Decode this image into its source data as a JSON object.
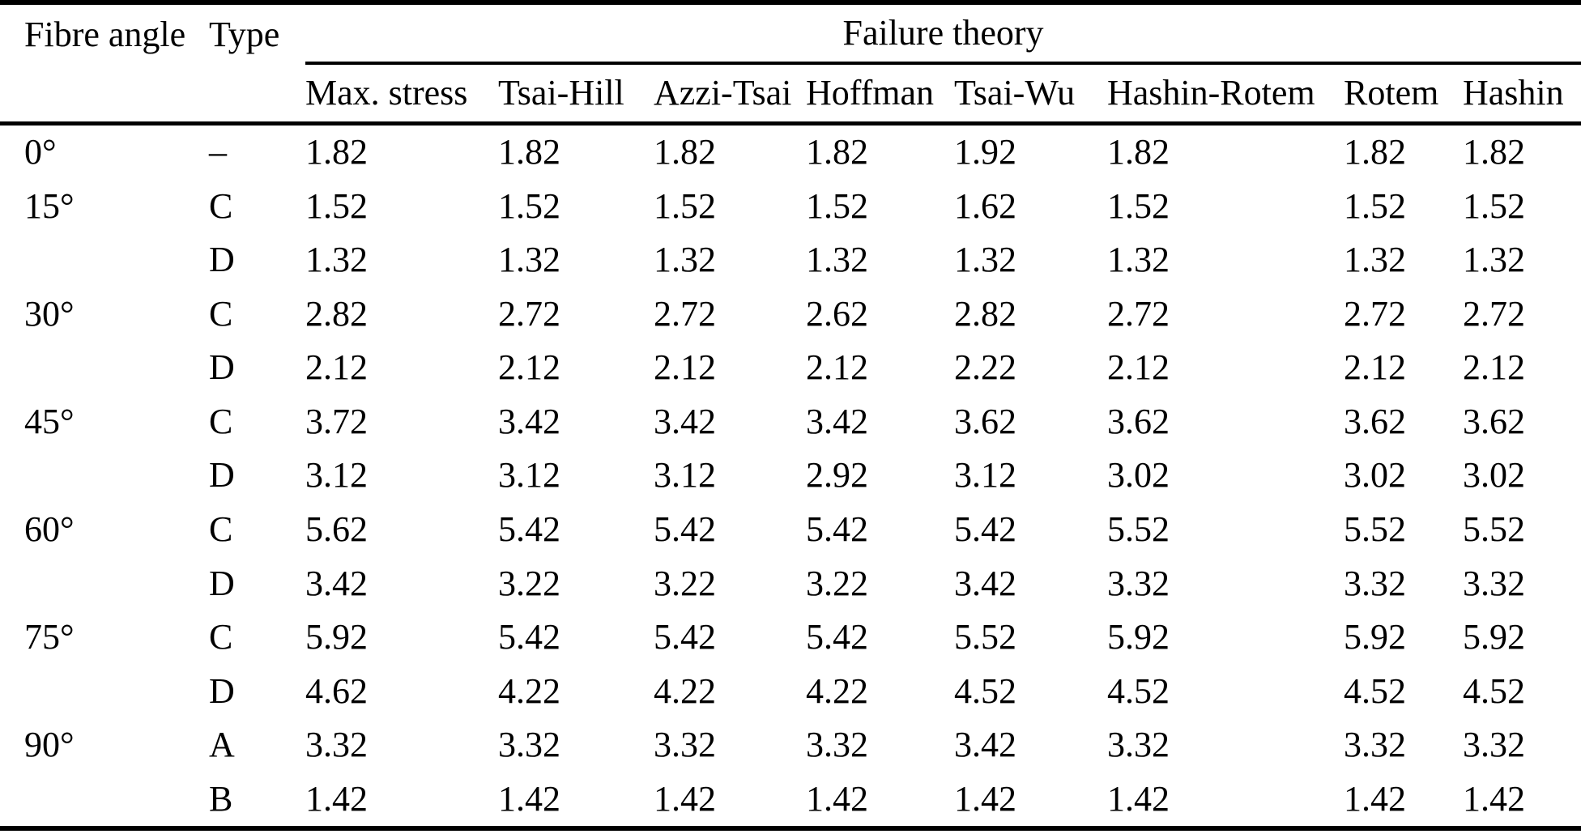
{
  "table": {
    "header": {
      "fibre_angle": "Fibre angle",
      "type": "Type",
      "failure_theory": "Failure theory",
      "theories": [
        "Max. stress",
        "Tsai-Hill",
        "Azzi-Tsai",
        "Hoffman",
        "Tsai-Wu",
        "Hashin-Rotem",
        "Rotem",
        "Hashin"
      ]
    },
    "rows": [
      {
        "fibre_angle": "0°",
        "type": "–",
        "values": [
          "1.82",
          "1.82",
          "1.82",
          "1.82",
          "1.92",
          "1.82",
          "1.82",
          "1.82"
        ]
      },
      {
        "fibre_angle": "15°",
        "type": "C",
        "values": [
          "1.52",
          "1.52",
          "1.52",
          "1.52",
          "1.62",
          "1.52",
          "1.52",
          "1.52"
        ]
      },
      {
        "fibre_angle": "",
        "type": "D",
        "values": [
          "1.32",
          "1.32",
          "1.32",
          "1.32",
          "1.32",
          "1.32",
          "1.32",
          "1.32"
        ]
      },
      {
        "fibre_angle": "30°",
        "type": "C",
        "values": [
          "2.82",
          "2.72",
          "2.72",
          "2.62",
          "2.82",
          "2.72",
          "2.72",
          "2.72"
        ]
      },
      {
        "fibre_angle": "",
        "type": "D",
        "values": [
          "2.12",
          "2.12",
          "2.12",
          "2.12",
          "2.22",
          "2.12",
          "2.12",
          "2.12"
        ]
      },
      {
        "fibre_angle": "45°",
        "type": "C",
        "values": [
          "3.72",
          "3.42",
          "3.42",
          "3.42",
          "3.62",
          "3.62",
          "3.62",
          "3.62"
        ]
      },
      {
        "fibre_angle": "",
        "type": "D",
        "values": [
          "3.12",
          "3.12",
          "3.12",
          "2.92",
          "3.12",
          "3.02",
          "3.02",
          "3.02"
        ]
      },
      {
        "fibre_angle": "60°",
        "type": "C",
        "values": [
          "5.62",
          "5.42",
          "5.42",
          "5.42",
          "5.42",
          "5.52",
          "5.52",
          "5.52"
        ]
      },
      {
        "fibre_angle": "",
        "type": "D",
        "values": [
          "3.42",
          "3.22",
          "3.22",
          "3.22",
          "3.42",
          "3.32",
          "3.32",
          "3.32"
        ]
      },
      {
        "fibre_angle": "75°",
        "type": "C",
        "values": [
          "5.92",
          "5.42",
          "5.42",
          "5.42",
          "5.52",
          "5.92",
          "5.92",
          "5.92"
        ]
      },
      {
        "fibre_angle": "",
        "type": "D",
        "values": [
          "4.62",
          "4.22",
          "4.22",
          "4.22",
          "4.52",
          "4.52",
          "4.52",
          "4.52"
        ]
      },
      {
        "fibre_angle": "90°",
        "type": "A",
        "values": [
          "3.32",
          "3.32",
          "3.32",
          "3.32",
          "3.42",
          "3.32",
          "3.32",
          "3.32"
        ]
      },
      {
        "fibre_angle": "",
        "type": "B",
        "values": [
          "1.42",
          "1.42",
          "1.42",
          "1.42",
          "1.42",
          "1.42",
          "1.42",
          "1.42"
        ]
      }
    ]
  },
  "colors": {
    "text": "#000000",
    "background": "#ffffff",
    "rule": "#000000"
  }
}
